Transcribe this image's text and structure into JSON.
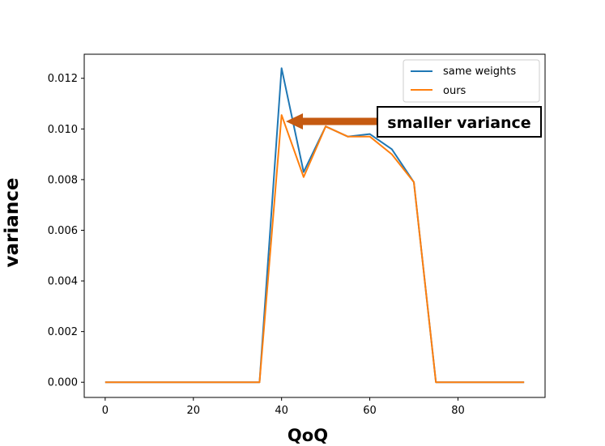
{
  "chart_data": {
    "type": "line",
    "title": "",
    "xlabel": "QoQ",
    "ylabel": "variance",
    "xlim": [
      -4.75,
      99.75
    ],
    "ylim": [
      -0.0006,
      0.01295
    ],
    "xticks": [
      0,
      20,
      40,
      60,
      80
    ],
    "yticks": [
      0.0,
      0.002,
      0.004,
      0.006,
      0.008,
      0.01,
      0.012
    ],
    "xtick_labels": [
      "0",
      "20",
      "40",
      "60",
      "80"
    ],
    "ytick_labels": [
      "0.000",
      "0.002",
      "0.004",
      "0.006",
      "0.008",
      "0.010",
      "0.012"
    ],
    "grid": false,
    "legend_position": "top-right",
    "x": [
      0,
      5,
      10,
      15,
      20,
      25,
      30,
      35,
      40,
      45,
      50,
      55,
      60,
      65,
      70,
      75,
      80,
      85,
      90,
      95
    ],
    "series": [
      {
        "name": "same weights",
        "color": "#1f77b4",
        "values": [
          0,
          0,
          0,
          0,
          0,
          0,
          0,
          0,
          0.0124,
          0.0083,
          0.0101,
          0.0097,
          0.0098,
          0.0092,
          0.0079,
          0,
          0,
          0,
          0,
          0
        ]
      },
      {
        "name": "ours",
        "color": "#ff7f0e",
        "values": [
          0,
          0,
          0,
          0,
          0,
          0,
          0,
          0,
          0.01055,
          0.0081,
          0.0101,
          0.0097,
          0.0097,
          0.009,
          0.0079,
          0,
          0,
          0,
          0,
          0
        ]
      }
    ],
    "annotation": {
      "text": "smaller variance",
      "points_to": [
        40,
        0.01035
      ],
      "arrow_color": "#c55a11"
    }
  }
}
